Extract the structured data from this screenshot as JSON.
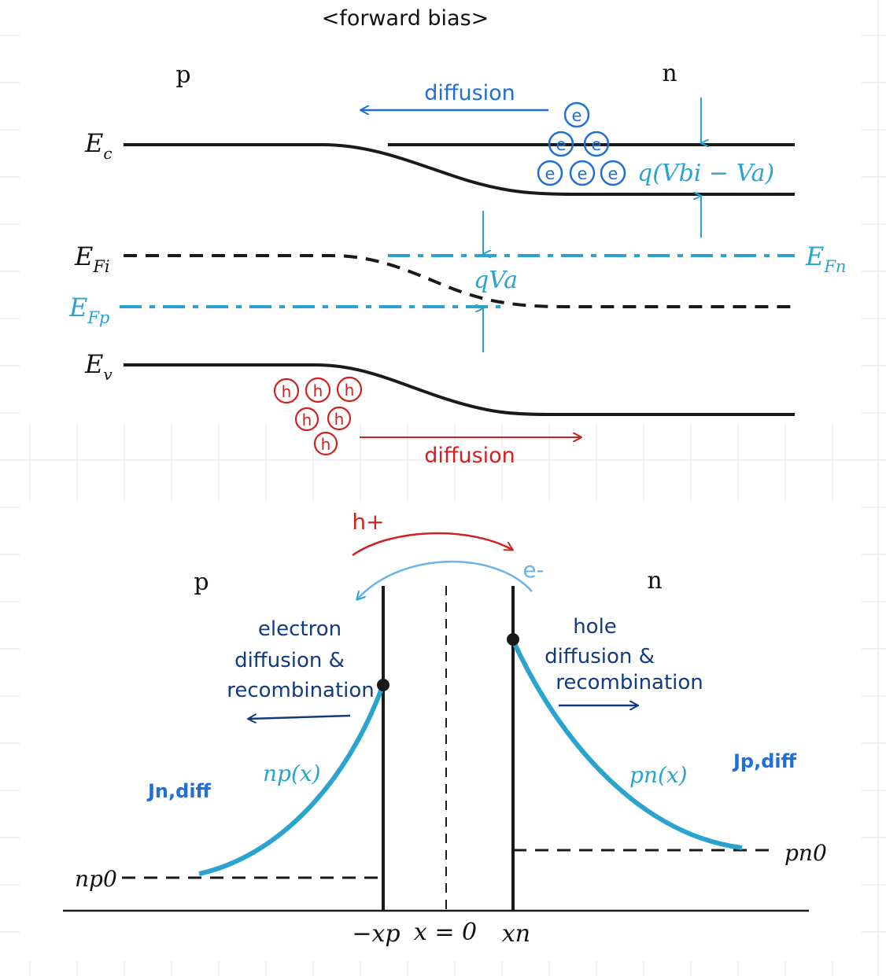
{
  "colors": {
    "band": "#1a1a1a",
    "quasi": "#2aa3cf",
    "electron": "#1f6fd6",
    "hole": "#d0201f",
    "annotation": "#123a80",
    "grid": "#e6e6e6"
  },
  "title": "<forward bias>",
  "band_diagram": {
    "p_label": "p",
    "n_label": "n",
    "Ec_label": "Ec",
    "EFi_label": "EFi",
    "EFp_label": "EFp",
    "Ev_label": "Ev",
    "EFn_label": "EFn",
    "barrier_label": "q(Vbi − Va)",
    "va_label": "qVa",
    "electron_diffusion": "diffusion",
    "hole_diffusion": "diffusion",
    "electron_symbol": "e",
    "hole_symbol": "h"
  },
  "carrier_diagram": {
    "p_label": "p",
    "n_label": "n",
    "hole_injection": "h+",
    "electron_injection": "e-",
    "left_note": [
      "electron",
      "diffusion &",
      "recombination"
    ],
    "right_note": [
      "hole",
      "diffusion &",
      "recombination"
    ],
    "np_curve": "np(x)",
    "pn_curve": "pn(x)",
    "jn_label": "Jn,diff",
    "jp_label": "Jp,diff",
    "np0_label": "np0",
    "pn0_label": "pn0",
    "xp_tick": "−xp",
    "x0_tick": "x = 0",
    "xn_tick": "xn"
  }
}
